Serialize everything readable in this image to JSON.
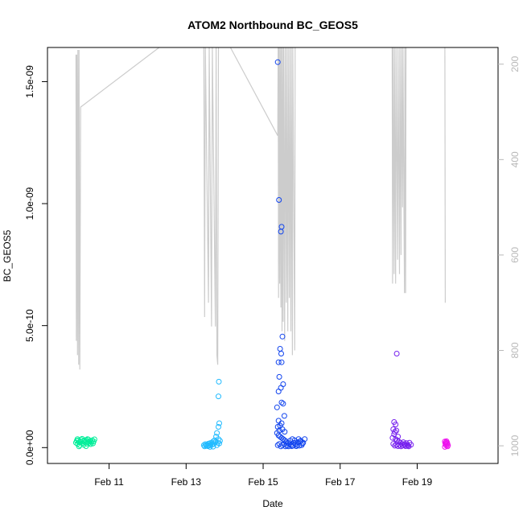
{
  "chart_data": {
    "type": "scatter",
    "title": "ATOM2 Northbound BC_GEOS5",
    "xlabel": "Date",
    "ylabel": "BC_GEOS5",
    "x_tick_labels": [
      "Feb 11",
      "Feb 13",
      "Feb 15",
      "Feb 17",
      "Feb 19"
    ],
    "x_tick_days": [
      11,
      13,
      15,
      17,
      19
    ],
    "xlim_days": [
      9.4,
      21.1
    ],
    "y_tick_labels": [
      "0.0e+00",
      "5.0e-10",
      "1.0e-09",
      "1.5e-09"
    ],
    "y_tick_values": [
      0,
      5e-10,
      1e-09,
      1.5e-09
    ],
    "ylim": [
      -6.5e-11,
      1.64e-09
    ],
    "y2_tick_labels": [
      "200",
      "400",
      "600",
      "800",
      "1000"
    ],
    "y2_tick_values": [
      200,
      400,
      600,
      800,
      1000
    ],
    "y2lim_pressure": [
      1037,
      165
    ],
    "y2_reversed": true,
    "pressure_line_color": "#cccccc",
    "series": [
      {
        "color": "#00ee99",
        "points": [
          {
            "day": 10.14,
            "v": 2e-11
          },
          {
            "day": 10.16,
            "v": 2.8e-11
          },
          {
            "day": 10.18,
            "v": 1.5e-11
          },
          {
            "day": 10.2,
            "v": 3e-11
          },
          {
            "day": 10.22,
            "v": 2.2e-11
          },
          {
            "day": 10.24,
            "v": 1e-11
          },
          {
            "day": 10.26,
            "v": 2.5e-11
          },
          {
            "day": 10.28,
            "v": 3.2e-11
          },
          {
            "day": 10.3,
            "v": 1.8e-11
          },
          {
            "day": 10.32,
            "v": 2.6e-11
          },
          {
            "day": 10.34,
            "v": 1.2e-11
          },
          {
            "day": 10.36,
            "v": 2.9e-11
          },
          {
            "day": 10.38,
            "v": 2.1e-11
          },
          {
            "day": 10.4,
            "v": 3.1e-11
          },
          {
            "day": 10.42,
            "v": 1.6e-11
          },
          {
            "day": 10.44,
            "v": 2.4e-11
          },
          {
            "day": 10.46,
            "v": 3.3e-11
          },
          {
            "day": 10.48,
            "v": 1.9e-11
          },
          {
            "day": 10.5,
            "v": 2.7e-11
          },
          {
            "day": 10.52,
            "v": 1.4e-11
          },
          {
            "day": 10.54,
            "v": 2.3e-11
          },
          {
            "day": 10.56,
            "v": 3e-11
          },
          {
            "day": 10.58,
            "v": 1.7e-11
          },
          {
            "day": 10.6,
            "v": 2.5e-11
          },
          {
            "day": 10.62,
            "v": 3.4e-11
          },
          {
            "day": 10.18,
            "v": 3.5e-11
          },
          {
            "day": 10.3,
            "v": 3.6e-11
          },
          {
            "day": 10.44,
            "v": 3.5e-11
          },
          {
            "day": 10.22,
            "v": 5e-12
          },
          {
            "day": 10.4,
            "v": 6e-12
          }
        ]
      },
      {
        "color": "#22bbff",
        "points": [
          {
            "day": 13.46,
            "v": 1e-11
          },
          {
            "day": 13.48,
            "v": 5e-12
          },
          {
            "day": 13.5,
            "v": 1.4e-11
          },
          {
            "day": 13.52,
            "v": 8e-12
          },
          {
            "day": 13.54,
            "v": 1.2e-11
          },
          {
            "day": 13.56,
            "v": 6e-12
          },
          {
            "day": 13.58,
            "v": 1.6e-11
          },
          {
            "day": 13.6,
            "v": 9e-12
          },
          {
            "day": 13.62,
            "v": 1.8e-11
          },
          {
            "day": 13.64,
            "v": 1.1e-11
          },
          {
            "day": 13.66,
            "v": 2e-11
          },
          {
            "day": 13.68,
            "v": 1.3e-11
          },
          {
            "day": 13.7,
            "v": 2.5e-11
          },
          {
            "day": 13.72,
            "v": 1.5e-11
          },
          {
            "day": 13.74,
            "v": 3e-11
          },
          {
            "day": 13.76,
            "v": 2.2e-11
          },
          {
            "day": 13.78,
            "v": 4.5e-11
          },
          {
            "day": 13.8,
            "v": 6e-11
          },
          {
            "day": 13.82,
            "v": 2e-11
          },
          {
            "day": 13.84,
            "v": 3.5e-11
          },
          {
            "day": 13.86,
            "v": 1.7e-11
          },
          {
            "day": 13.88,
            "v": 2.8e-11
          },
          {
            "day": 13.84,
            "v": 8.5e-11
          },
          {
            "day": 13.86,
            "v": 1e-10
          },
          {
            "day": 13.84,
            "v": 2.1e-10
          },
          {
            "day": 13.85,
            "v": 2.7e-10
          },
          {
            "day": 13.62,
            "v": 3e-12
          },
          {
            "day": 13.7,
            "v": 4e-12
          },
          {
            "day": 13.8,
            "v": 1e-11
          }
        ]
      },
      {
        "color": "#1144ee",
        "points": [
          {
            "day": 15.38,
            "v": 1.58e-09
          },
          {
            "day": 15.41,
            "v": 1.015e-09
          },
          {
            "day": 15.48,
            "v": 9.05e-10
          },
          {
            "day": 15.46,
            "v": 8.85e-10
          },
          {
            "day": 15.5,
            "v": 4.55e-10
          },
          {
            "day": 15.44,
            "v": 4.05e-10
          },
          {
            "day": 15.47,
            "v": 3.85e-10
          },
          {
            "day": 15.4,
            "v": 3.5e-10
          },
          {
            "day": 15.48,
            "v": 3.5e-10
          },
          {
            "day": 15.42,
            "v": 2.9e-10
          },
          {
            "day": 15.52,
            "v": 2.6e-10
          },
          {
            "day": 15.46,
            "v": 2.45e-10
          },
          {
            "day": 15.4,
            "v": 2.3e-10
          },
          {
            "day": 15.48,
            "v": 1.85e-10
          },
          {
            "day": 15.52,
            "v": 1.8e-10
          },
          {
            "day": 15.36,
            "v": 1.65e-10
          },
          {
            "day": 15.55,
            "v": 1.3e-10
          },
          {
            "day": 15.4,
            "v": 1.1e-10
          },
          {
            "day": 15.44,
            "v": 9e-11
          },
          {
            "day": 15.48,
            "v": 1e-10
          },
          {
            "day": 15.38,
            "v": 8.5e-11
          },
          {
            "day": 15.42,
            "v": 7e-11
          },
          {
            "day": 15.5,
            "v": 7.5e-11
          },
          {
            "day": 15.56,
            "v": 6.5e-11
          },
          {
            "day": 15.36,
            "v": 6e-11
          },
          {
            "day": 15.4,
            "v": 5e-11
          },
          {
            "day": 15.44,
            "v": 4.5e-11
          },
          {
            "day": 15.48,
            "v": 4e-11
          },
          {
            "day": 15.52,
            "v": 3.5e-11
          },
          {
            "day": 15.56,
            "v": 3e-11
          },
          {
            "day": 15.6,
            "v": 2.5e-11
          },
          {
            "day": 15.64,
            "v": 2e-11
          },
          {
            "day": 15.68,
            "v": 1.5e-11
          },
          {
            "day": 15.72,
            "v": 1.2e-11
          },
          {
            "day": 15.76,
            "v": 3.5e-11
          },
          {
            "day": 15.8,
            "v": 2e-11
          },
          {
            "day": 15.84,
            "v": 1.5e-11
          },
          {
            "day": 15.88,
            "v": 1e-11
          },
          {
            "day": 15.92,
            "v": 3.5e-11
          },
          {
            "day": 15.96,
            "v": 2.5e-11
          },
          {
            "day": 16.0,
            "v": 1e-11
          },
          {
            "day": 16.04,
            "v": 2e-11
          },
          {
            "day": 16.08,
            "v": 3.5e-11
          },
          {
            "day": 15.38,
            "v": 1e-11
          },
          {
            "day": 15.42,
            "v": 1.5e-11
          },
          {
            "day": 15.46,
            "v": 5e-12
          },
          {
            "day": 15.5,
            "v": 1e-11
          },
          {
            "day": 15.54,
            "v": 1.5e-11
          },
          {
            "day": 15.58,
            "v": 5e-12
          },
          {
            "day": 15.62,
            "v": 8e-12
          },
          {
            "day": 15.66,
            "v": 5e-12
          },
          {
            "day": 15.7,
            "v": 2.8e-11
          },
          {
            "day": 15.74,
            "v": 6e-12
          },
          {
            "day": 15.78,
            "v": 8e-12
          },
          {
            "day": 15.82,
            "v": 3e-11
          },
          {
            "day": 15.86,
            "v": 6e-12
          },
          {
            "day": 15.9,
            "v": 2.2e-11
          },
          {
            "day": 15.94,
            "v": 8e-12
          },
          {
            "day": 15.98,
            "v": 2.8e-11
          },
          {
            "day": 16.02,
            "v": 1.6e-11
          }
        ]
      },
      {
        "color": "#7722ee",
        "points": [
          {
            "day": 18.47,
            "v": 3.85e-10
          },
          {
            "day": 18.4,
            "v": 1.05e-10
          },
          {
            "day": 18.44,
            "v": 9.5e-11
          },
          {
            "day": 18.38,
            "v": 7.5e-11
          },
          {
            "day": 18.42,
            "v": 6.5e-11
          },
          {
            "day": 18.46,
            "v": 7e-11
          },
          {
            "day": 18.4,
            "v": 5.5e-11
          },
          {
            "day": 18.5,
            "v": 4.5e-11
          },
          {
            "day": 18.36,
            "v": 4e-11
          },
          {
            "day": 18.44,
            "v": 3.5e-11
          },
          {
            "day": 18.48,
            "v": 3e-11
          },
          {
            "day": 18.52,
            "v": 2.5e-11
          },
          {
            "day": 18.56,
            "v": 2e-11
          },
          {
            "day": 18.6,
            "v": 1.5e-11
          },
          {
            "day": 18.64,
            "v": 2.2e-11
          },
          {
            "day": 18.68,
            "v": 1e-11
          },
          {
            "day": 18.72,
            "v": 1.8e-11
          },
          {
            "day": 18.76,
            "v": 8e-12
          },
          {
            "day": 18.8,
            "v": 2e-11
          },
          {
            "day": 18.84,
            "v": 1.2e-11
          },
          {
            "day": 18.38,
            "v": 1.5e-11
          },
          {
            "day": 18.42,
            "v": 8e-12
          },
          {
            "day": 18.46,
            "v": 1.2e-11
          },
          {
            "day": 18.5,
            "v": 6e-12
          },
          {
            "day": 18.54,
            "v": 1e-11
          },
          {
            "day": 18.58,
            "v": 5e-12
          },
          {
            "day": 18.62,
            "v": 9e-12
          },
          {
            "day": 18.66,
            "v": 1.4e-11
          },
          {
            "day": 18.7,
            "v": 6e-12
          },
          {
            "day": 18.74,
            "v": 1.1e-11
          },
          {
            "day": 18.78,
            "v": 5e-12
          }
        ]
      },
      {
        "color": "#ee11ee",
        "points": [
          {
            "day": 19.72,
            "v": 2.5e-11
          },
          {
            "day": 19.73,
            "v": 1.8e-11
          },
          {
            "day": 19.74,
            "v": 1.2e-11
          },
          {
            "day": 19.75,
            "v": 2.2e-11
          },
          {
            "day": 19.76,
            "v": 8e-12
          },
          {
            "day": 19.77,
            "v": 1.5e-11
          },
          {
            "day": 19.78,
            "v": 2e-11
          },
          {
            "day": 19.79,
            "v": 5e-12
          },
          {
            "day": 19.8,
            "v": 1e-11
          },
          {
            "day": 19.72,
            "v": 3e-12
          },
          {
            "day": 19.76,
            "v": 2.6e-11
          }
        ]
      }
    ],
    "pressure_profiles": [
      [
        {
          "day": 10.14,
          "p": 180
        },
        {
          "day": 10.15,
          "p": 780
        },
        {
          "day": 10.16,
          "p": 180
        },
        {
          "day": 10.18,
          "p": 810
        },
        {
          "day": 10.19,
          "p": 170
        },
        {
          "day": 10.21,
          "p": 830
        },
        {
          "day": 10.22,
          "p": 170
        },
        {
          "day": 10.24,
          "p": 840
        },
        {
          "day": 10.26,
          "p": 290
        },
        {
          "day": 12.3,
          "p": 165
        }
      ],
      [
        {
          "day": 13.46,
          "p": 165
        },
        {
          "day": 13.48,
          "p": 730
        },
        {
          "day": 13.5,
          "p": 165
        },
        {
          "day": 13.58,
          "p": 700
        },
        {
          "day": 13.6,
          "p": 165
        },
        {
          "day": 13.66,
          "p": 750
        },
        {
          "day": 13.68,
          "p": 165
        },
        {
          "day": 13.76,
          "p": 750
        },
        {
          "day": 13.78,
          "p": 165
        },
        {
          "day": 13.8,
          "p": 810
        },
        {
          "day": 13.82,
          "p": 830
        },
        {
          "day": 13.84,
          "p": 165
        }
      ],
      [
        {
          "day": 14.15,
          "p": 165
        },
        {
          "day": 15.38,
          "p": 350
        },
        {
          "day": 15.39,
          "p": 165
        },
        {
          "day": 15.4,
          "p": 690
        },
        {
          "day": 15.41,
          "p": 165
        },
        {
          "day": 15.43,
          "p": 660
        },
        {
          "day": 15.44,
          "p": 165
        },
        {
          "day": 15.46,
          "p": 710
        },
        {
          "day": 15.47,
          "p": 165
        },
        {
          "day": 15.49,
          "p": 760
        },
        {
          "day": 15.5,
          "p": 165
        },
        {
          "day": 15.52,
          "p": 740
        },
        {
          "day": 15.53,
          "p": 165
        },
        {
          "day": 15.56,
          "p": 780
        },
        {
          "day": 15.57,
          "p": 165
        },
        {
          "day": 15.6,
          "p": 700
        },
        {
          "day": 15.61,
          "p": 165
        },
        {
          "day": 15.64,
          "p": 760
        },
        {
          "day": 15.65,
          "p": 165
        },
        {
          "day": 15.68,
          "p": 690
        },
        {
          "day": 15.69,
          "p": 165
        },
        {
          "day": 15.72,
          "p": 760
        },
        {
          "day": 15.73,
          "p": 165
        },
        {
          "day": 15.76,
          "p": 810
        },
        {
          "day": 15.77,
          "p": 165
        },
        {
          "day": 15.82,
          "p": 800
        },
        {
          "day": 15.83,
          "p": 165
        }
      ],
      [
        {
          "day": 18.35,
          "p": 165
        },
        {
          "day": 18.36,
          "p": 660
        },
        {
          "day": 18.37,
          "p": 165
        },
        {
          "day": 18.4,
          "p": 640
        },
        {
          "day": 18.41,
          "p": 165
        },
        {
          "day": 18.44,
          "p": 660
        },
        {
          "day": 18.45,
          "p": 165
        },
        {
          "day": 18.49,
          "p": 610
        },
        {
          "day": 18.5,
          "p": 165
        },
        {
          "day": 18.54,
          "p": 640
        },
        {
          "day": 18.55,
          "p": 165
        },
        {
          "day": 18.58,
          "p": 600
        },
        {
          "day": 18.59,
          "p": 165
        },
        {
          "day": 18.62,
          "p": 500
        },
        {
          "day": 18.63,
          "p": 165
        },
        {
          "day": 18.67,
          "p": 680
        },
        {
          "day": 18.68,
          "p": 165
        },
        {
          "day": 18.7,
          "p": 680
        },
        {
          "day": 18.71,
          "p": 165
        }
      ],
      [
        {
          "day": 19.72,
          "p": 165
        },
        {
          "day": 19.73,
          "p": 700
        }
      ]
    ]
  }
}
